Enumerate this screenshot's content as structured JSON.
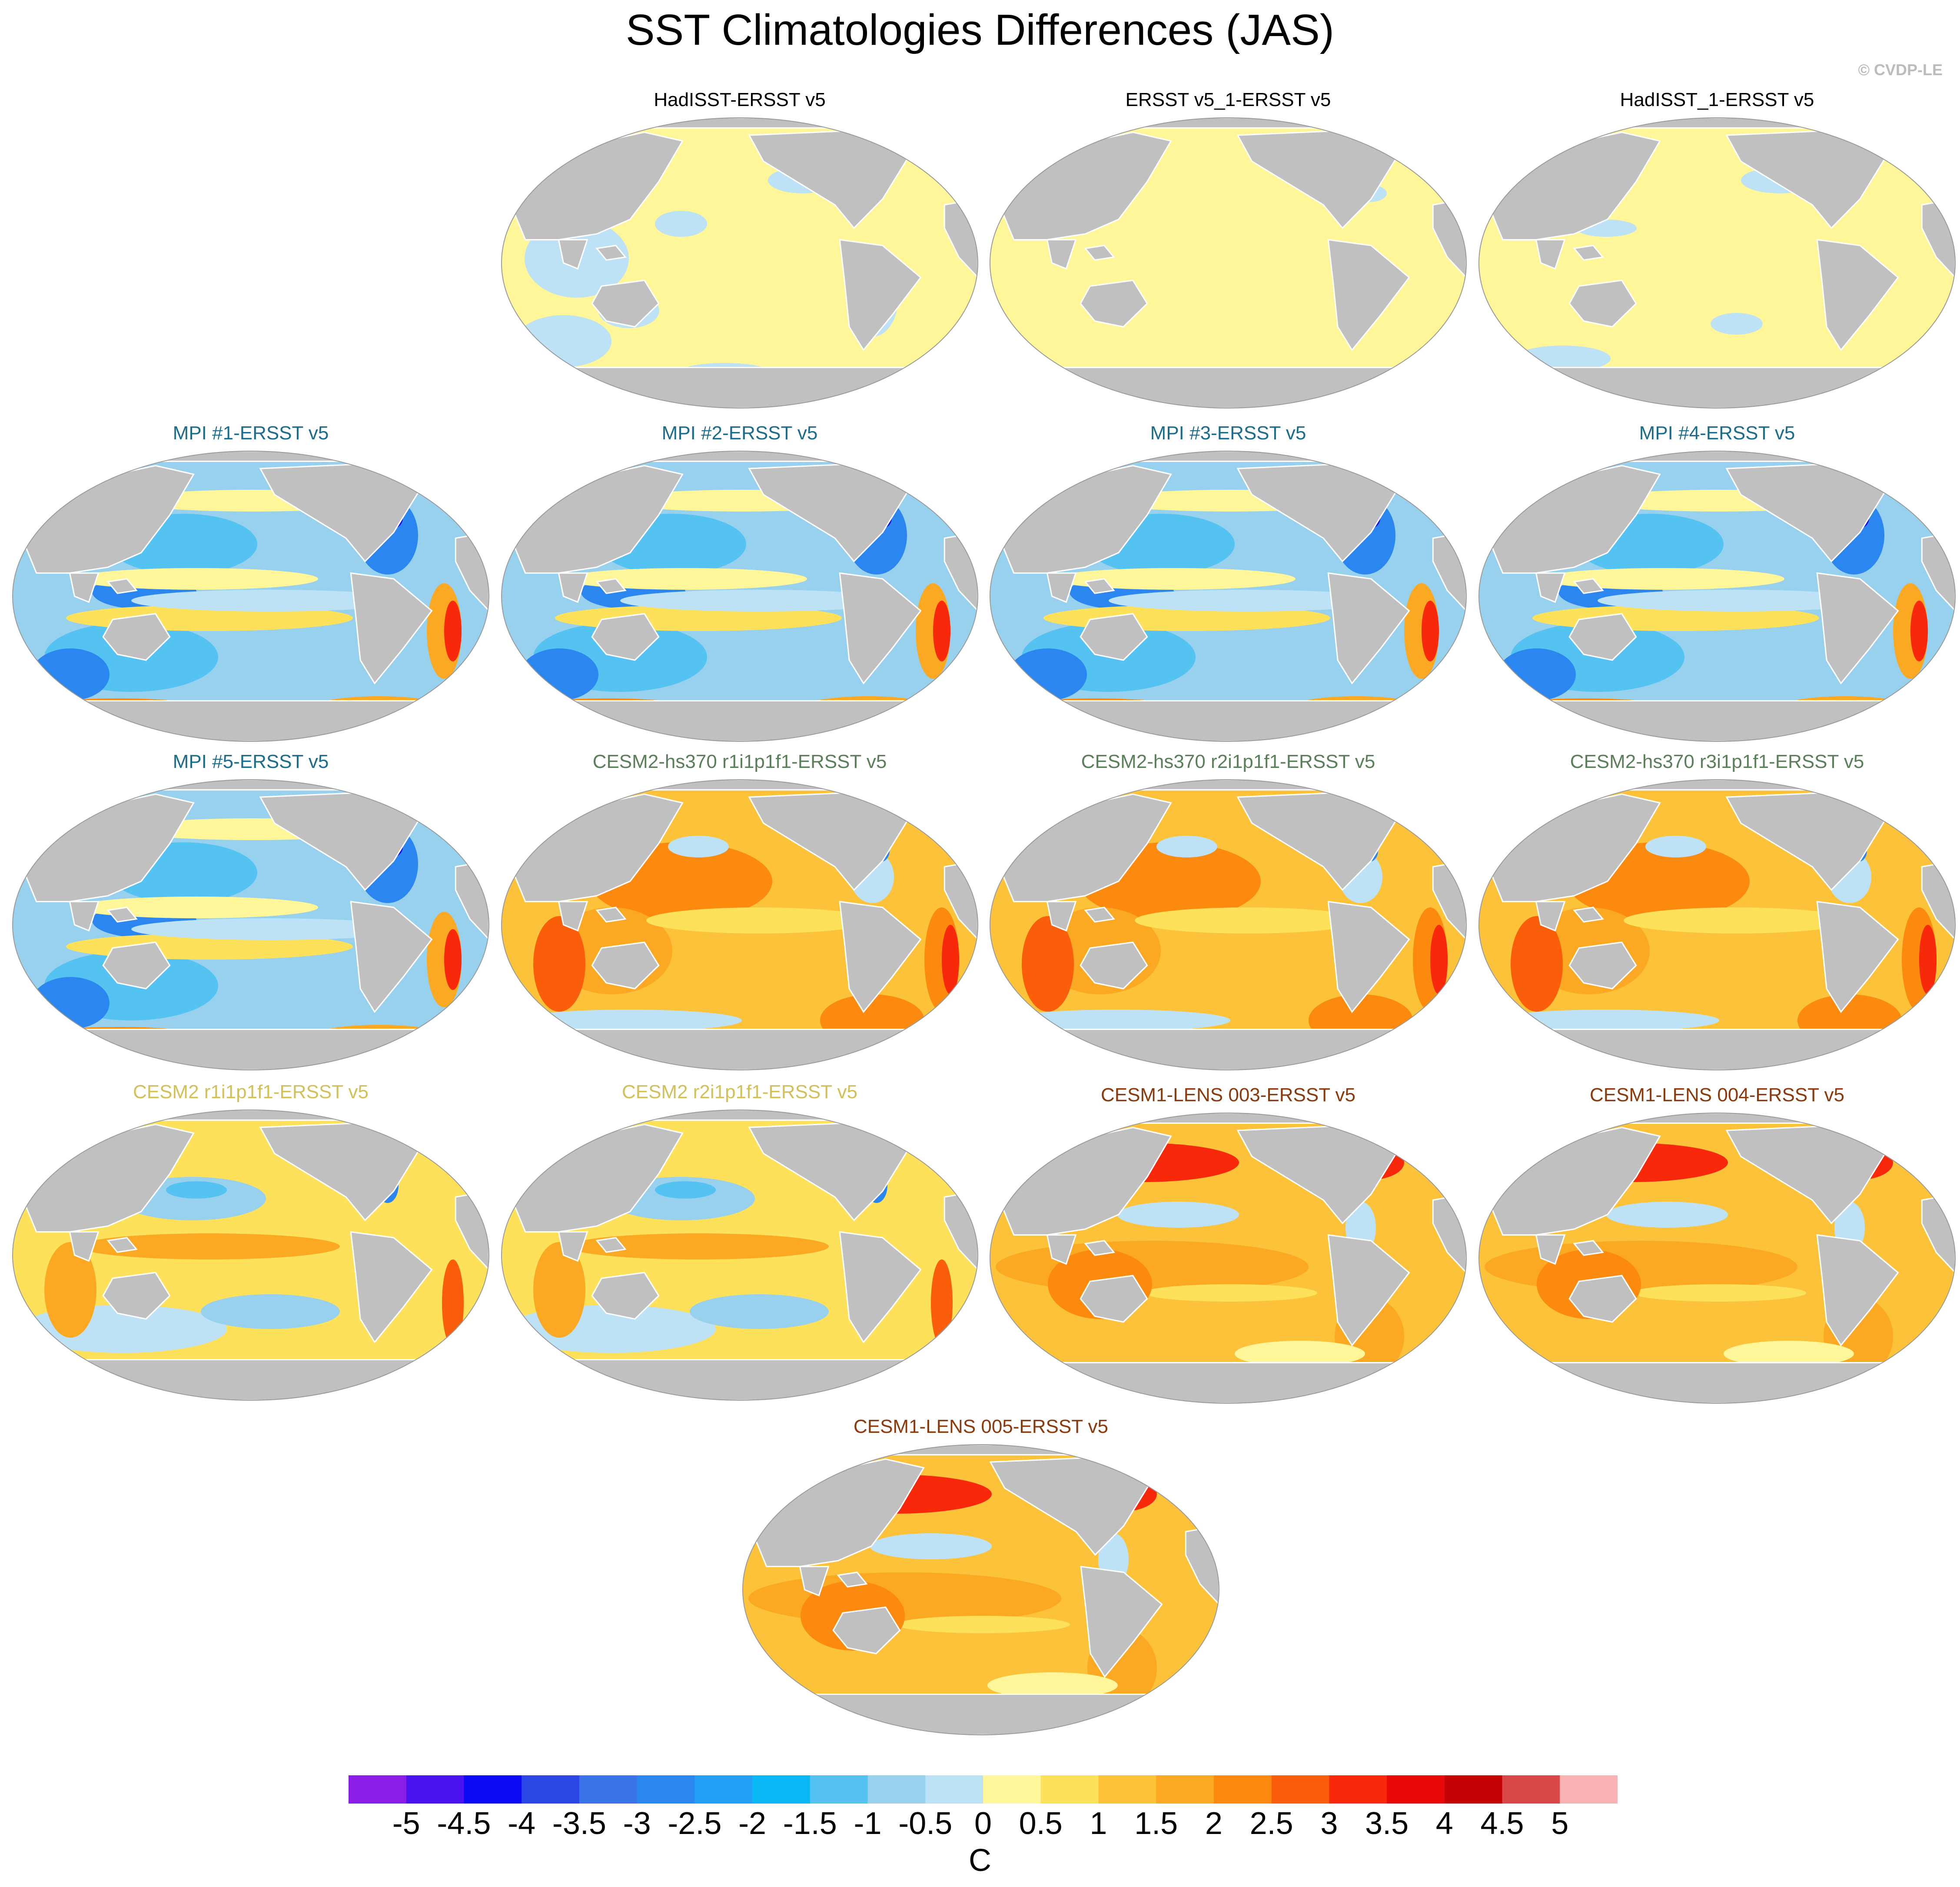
{
  "title": "SST Climatologies Differences (JAS)",
  "credit": "© CVDP-LE",
  "panels": [
    {
      "label": "HadISST-ERSST v5",
      "color": "#000000",
      "bias": "obs1"
    },
    {
      "label": "ERSST v5_1-ERSST v5",
      "color": "#000000",
      "bias": "obs2"
    },
    {
      "label": "HadISST_1-ERSST v5",
      "color": "#000000",
      "bias": "obs3"
    },
    {
      "label": "MPI #1-ERSST v5",
      "color": "#1c6d8c",
      "bias": "mpi"
    },
    {
      "label": "MPI #2-ERSST v5",
      "color": "#1c6d8c",
      "bias": "mpi"
    },
    {
      "label": "MPI #3-ERSST v5",
      "color": "#1c6d8c",
      "bias": "mpi"
    },
    {
      "label": "MPI #4-ERSST v5",
      "color": "#1c6d8c",
      "bias": "mpi"
    },
    {
      "label": "MPI #5-ERSST v5",
      "color": "#1c6d8c",
      "bias": "mpi"
    },
    {
      "label": "CESM2-hs370 r1i1p1f1-ERSST v5",
      "color": "#5b7e5b",
      "bias": "hs370"
    },
    {
      "label": "CESM2-hs370 r2i1p1f1-ERSST v5",
      "color": "#5b7e5b",
      "bias": "hs370"
    },
    {
      "label": "CESM2-hs370 r3i1p1f1-ERSST v5",
      "color": "#5b7e5b",
      "bias": "hs370"
    },
    {
      "label": "CESM2 r1i1p1f1-ERSST v5",
      "color": "#d2c05a",
      "bias": "cesm2"
    },
    {
      "label": "CESM2 r2i1p1f1-ERSST v5",
      "color": "#d2c05a",
      "bias": "cesm2"
    },
    {
      "label": "CESM1-LENS 003-ERSST v5",
      "color": "#8a3a0c",
      "bias": "lens"
    },
    {
      "label": "CESM1-LENS 004-ERSST v5",
      "color": "#8a3a0c",
      "bias": "lens"
    },
    {
      "label": "CESM1-LENS 005-ERSST v5",
      "color": "#8a3a0c",
      "bias": "lens"
    }
  ],
  "colorbar": {
    "levels": [
      "-5",
      "-4.5",
      "-4",
      "-3.5",
      "-3",
      "-2.5",
      "-2",
      "-1.5",
      "-1",
      "-0.5",
      "0",
      "0.5",
      "1",
      "1.5",
      "2",
      "2.5",
      "3",
      "3.5",
      "4",
      "4.5",
      "5"
    ],
    "colors": [
      "#8a1ee6",
      "#4a14f0",
      "#0a0af5",
      "#2d46e6",
      "#3a74e8",
      "#2b86ef",
      "#22a0f5",
      "#0ab8f5",
      "#55c3f2",
      "#97d1ee",
      "#bde2f5",
      "#fff69a",
      "#fde15a",
      "#fcc33a",
      "#fba822",
      "#fb8a0e",
      "#fa5e0a",
      "#f8280a",
      "#e80808",
      "#c40404",
      "#d94848",
      "#f9b3b3"
    ],
    "units": "C"
  }
}
